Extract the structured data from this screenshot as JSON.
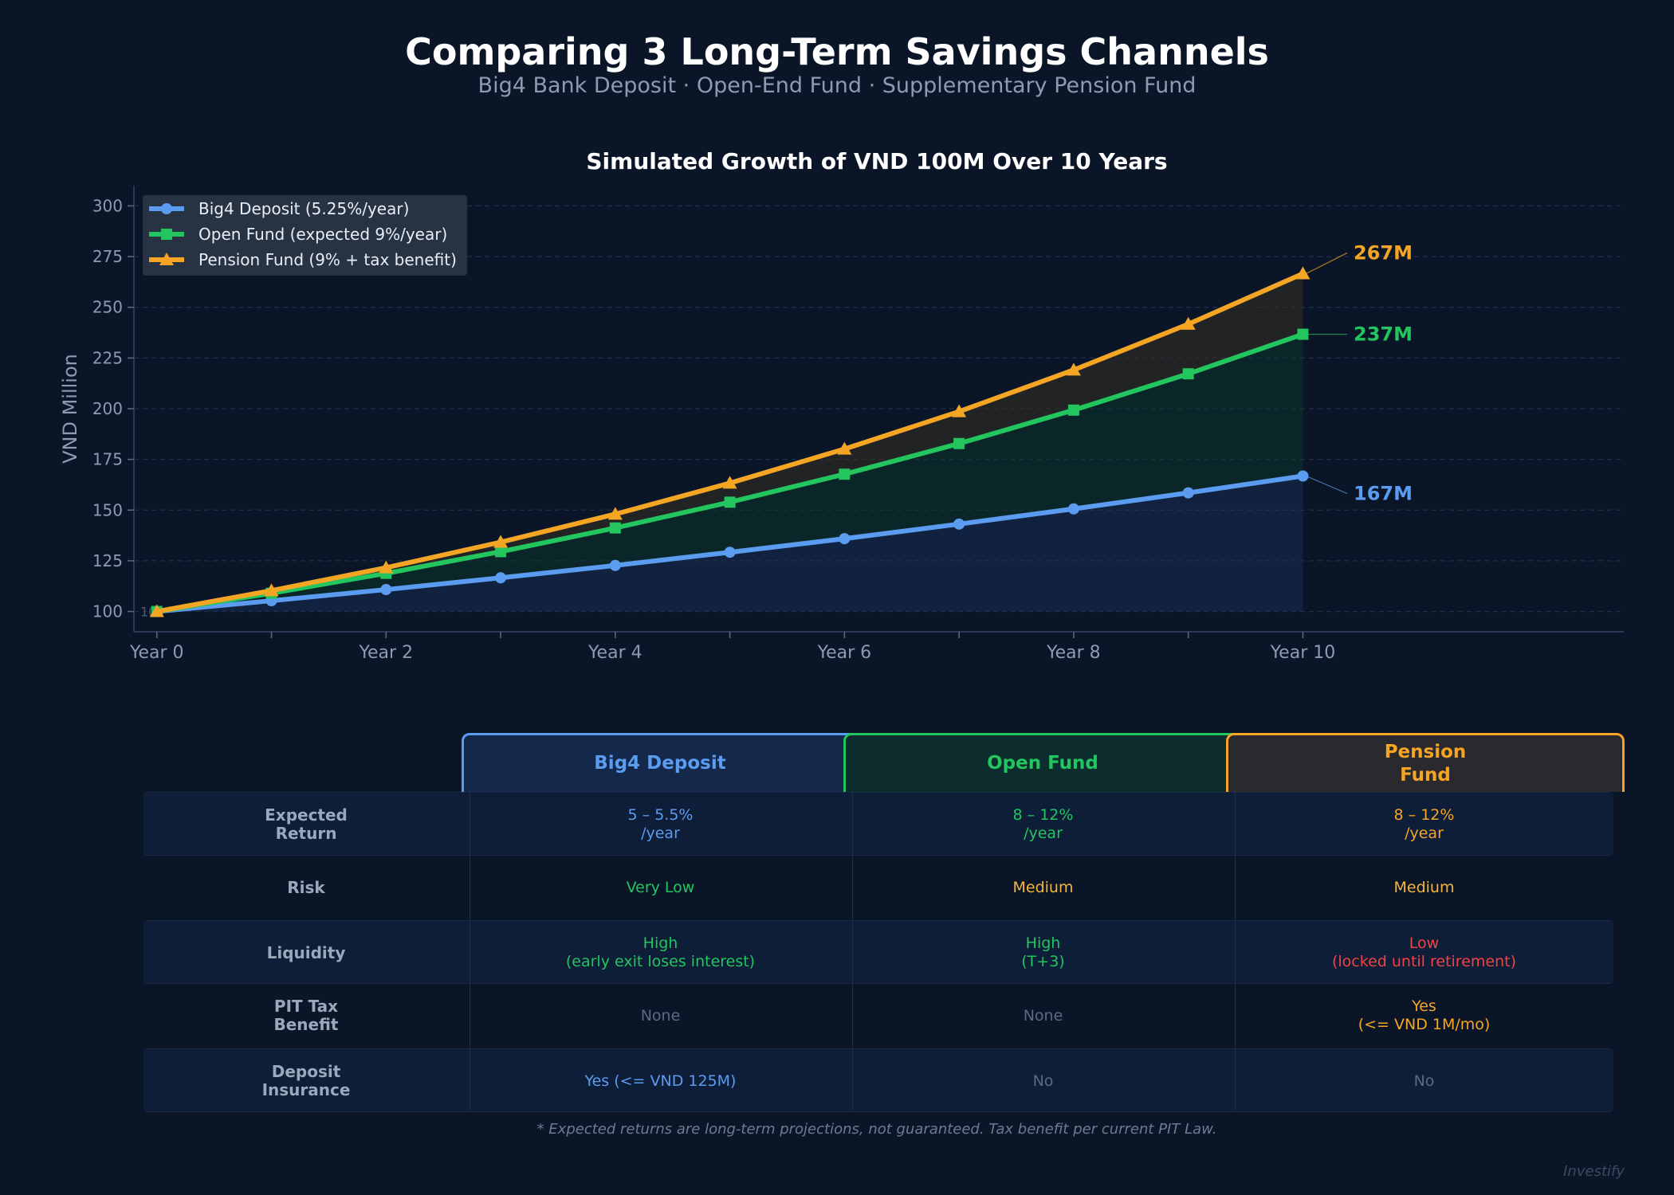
{
  "header": {
    "title": "Comparing 3 Long-Term Savings Channels",
    "subtitle": "Big4 Bank Deposit  ·  Open-End Fund  ·  Supplementary Pension Fund"
  },
  "chart_data": {
    "type": "line",
    "title": "Simulated Growth of VND 100M Over 10 Years",
    "ylabel": "VND Million",
    "xlabel": "",
    "ylim": [
      90,
      310
    ],
    "xlim": [
      -0.2,
      12.8
    ],
    "yticks": [
      100,
      125,
      150,
      175,
      200,
      225,
      250,
      275,
      300
    ],
    "x": [
      0,
      1,
      2,
      3,
      4,
      5,
      6,
      7,
      8,
      9,
      10
    ],
    "xtick_values": [
      0,
      2,
      4,
      6,
      8,
      10
    ],
    "xtick_labels": [
      "Year 0",
      "Year 2",
      "Year 4",
      "Year 6",
      "Year 8",
      "Year 10"
    ],
    "grid": true,
    "legend_position": "top-left",
    "baseline_label": "100",
    "series": [
      {
        "name": "Big4 Deposit  (5.25%/year)",
        "color": "#5b9cf0",
        "marker": "circle",
        "values": [
          100,
          105.3,
          110.8,
          116.6,
          122.7,
          129.2,
          135.9,
          143.1,
          150.6,
          158.5,
          166.8
        ],
        "end_label": "167M"
      },
      {
        "name": "Open Fund  (expected 9%/year)",
        "color": "#22c55e",
        "marker": "square",
        "values": [
          100,
          109,
          118.8,
          129.5,
          141.2,
          153.9,
          167.7,
          182.8,
          199.3,
          217.2,
          236.7
        ],
        "end_label": "237M"
      },
      {
        "name": "Pension Fund  (9% + tax benefit)",
        "color": "#f5a524",
        "marker": "triangle",
        "values": [
          100,
          110.3,
          121.6,
          134.2,
          148,
          163.3,
          180.1,
          198.6,
          219.1,
          241.7,
          266.6
        ],
        "end_label": "267M"
      }
    ]
  },
  "comparison": {
    "columns": [
      {
        "label": "Big4 Deposit",
        "color": "#5b9cf0",
        "bg": "#13284a"
      },
      {
        "label": "Open Fund",
        "color": "#22c55e",
        "bg": "#0c2c2e"
      },
      {
        "label": "Pension\nFund",
        "color": "#f5a524",
        "bg": "#2a2a2e"
      }
    ],
    "rows": [
      {
        "label": "Expected\nReturn",
        "cells": [
          "5 – 5.5%\n/year",
          "8 – 12%\n/year",
          "8 – 12%\n/year"
        ],
        "colors": [
          "#5b9cf0",
          "#22c55e",
          "#f5a524"
        ]
      },
      {
        "label": "Risk",
        "cells": [
          "Very Low",
          "Medium",
          "Medium"
        ],
        "colors": [
          "#22c55e",
          "#f5b53a",
          "#f5b53a"
        ]
      },
      {
        "label": "Liquidity",
        "cells": [
          "High\n(early exit loses interest)",
          "High\n(T+3)",
          "Low\n(locked until retirement)"
        ],
        "colors": [
          "#22c55e",
          "#22c55e",
          "#ef4444"
        ]
      },
      {
        "label": "PIT Tax\nBenefit",
        "cells": [
          "None",
          "None",
          "Yes\n(<= VND 1M/mo)"
        ],
        "colors": [
          "#5a6a80",
          "#5a6a80",
          "#f5a524"
        ]
      },
      {
        "label": "Deposit\nInsurance",
        "cells": [
          "Yes (<= VND 125M)",
          "No",
          "No"
        ],
        "colors": [
          "#5b9cf0",
          "#5a6a80",
          "#5a6a80"
        ]
      }
    ]
  },
  "footnote": "* Expected returns are long-term projections, not guaranteed. Tax benefit per current PIT Law.",
  "watermark": "Investify"
}
